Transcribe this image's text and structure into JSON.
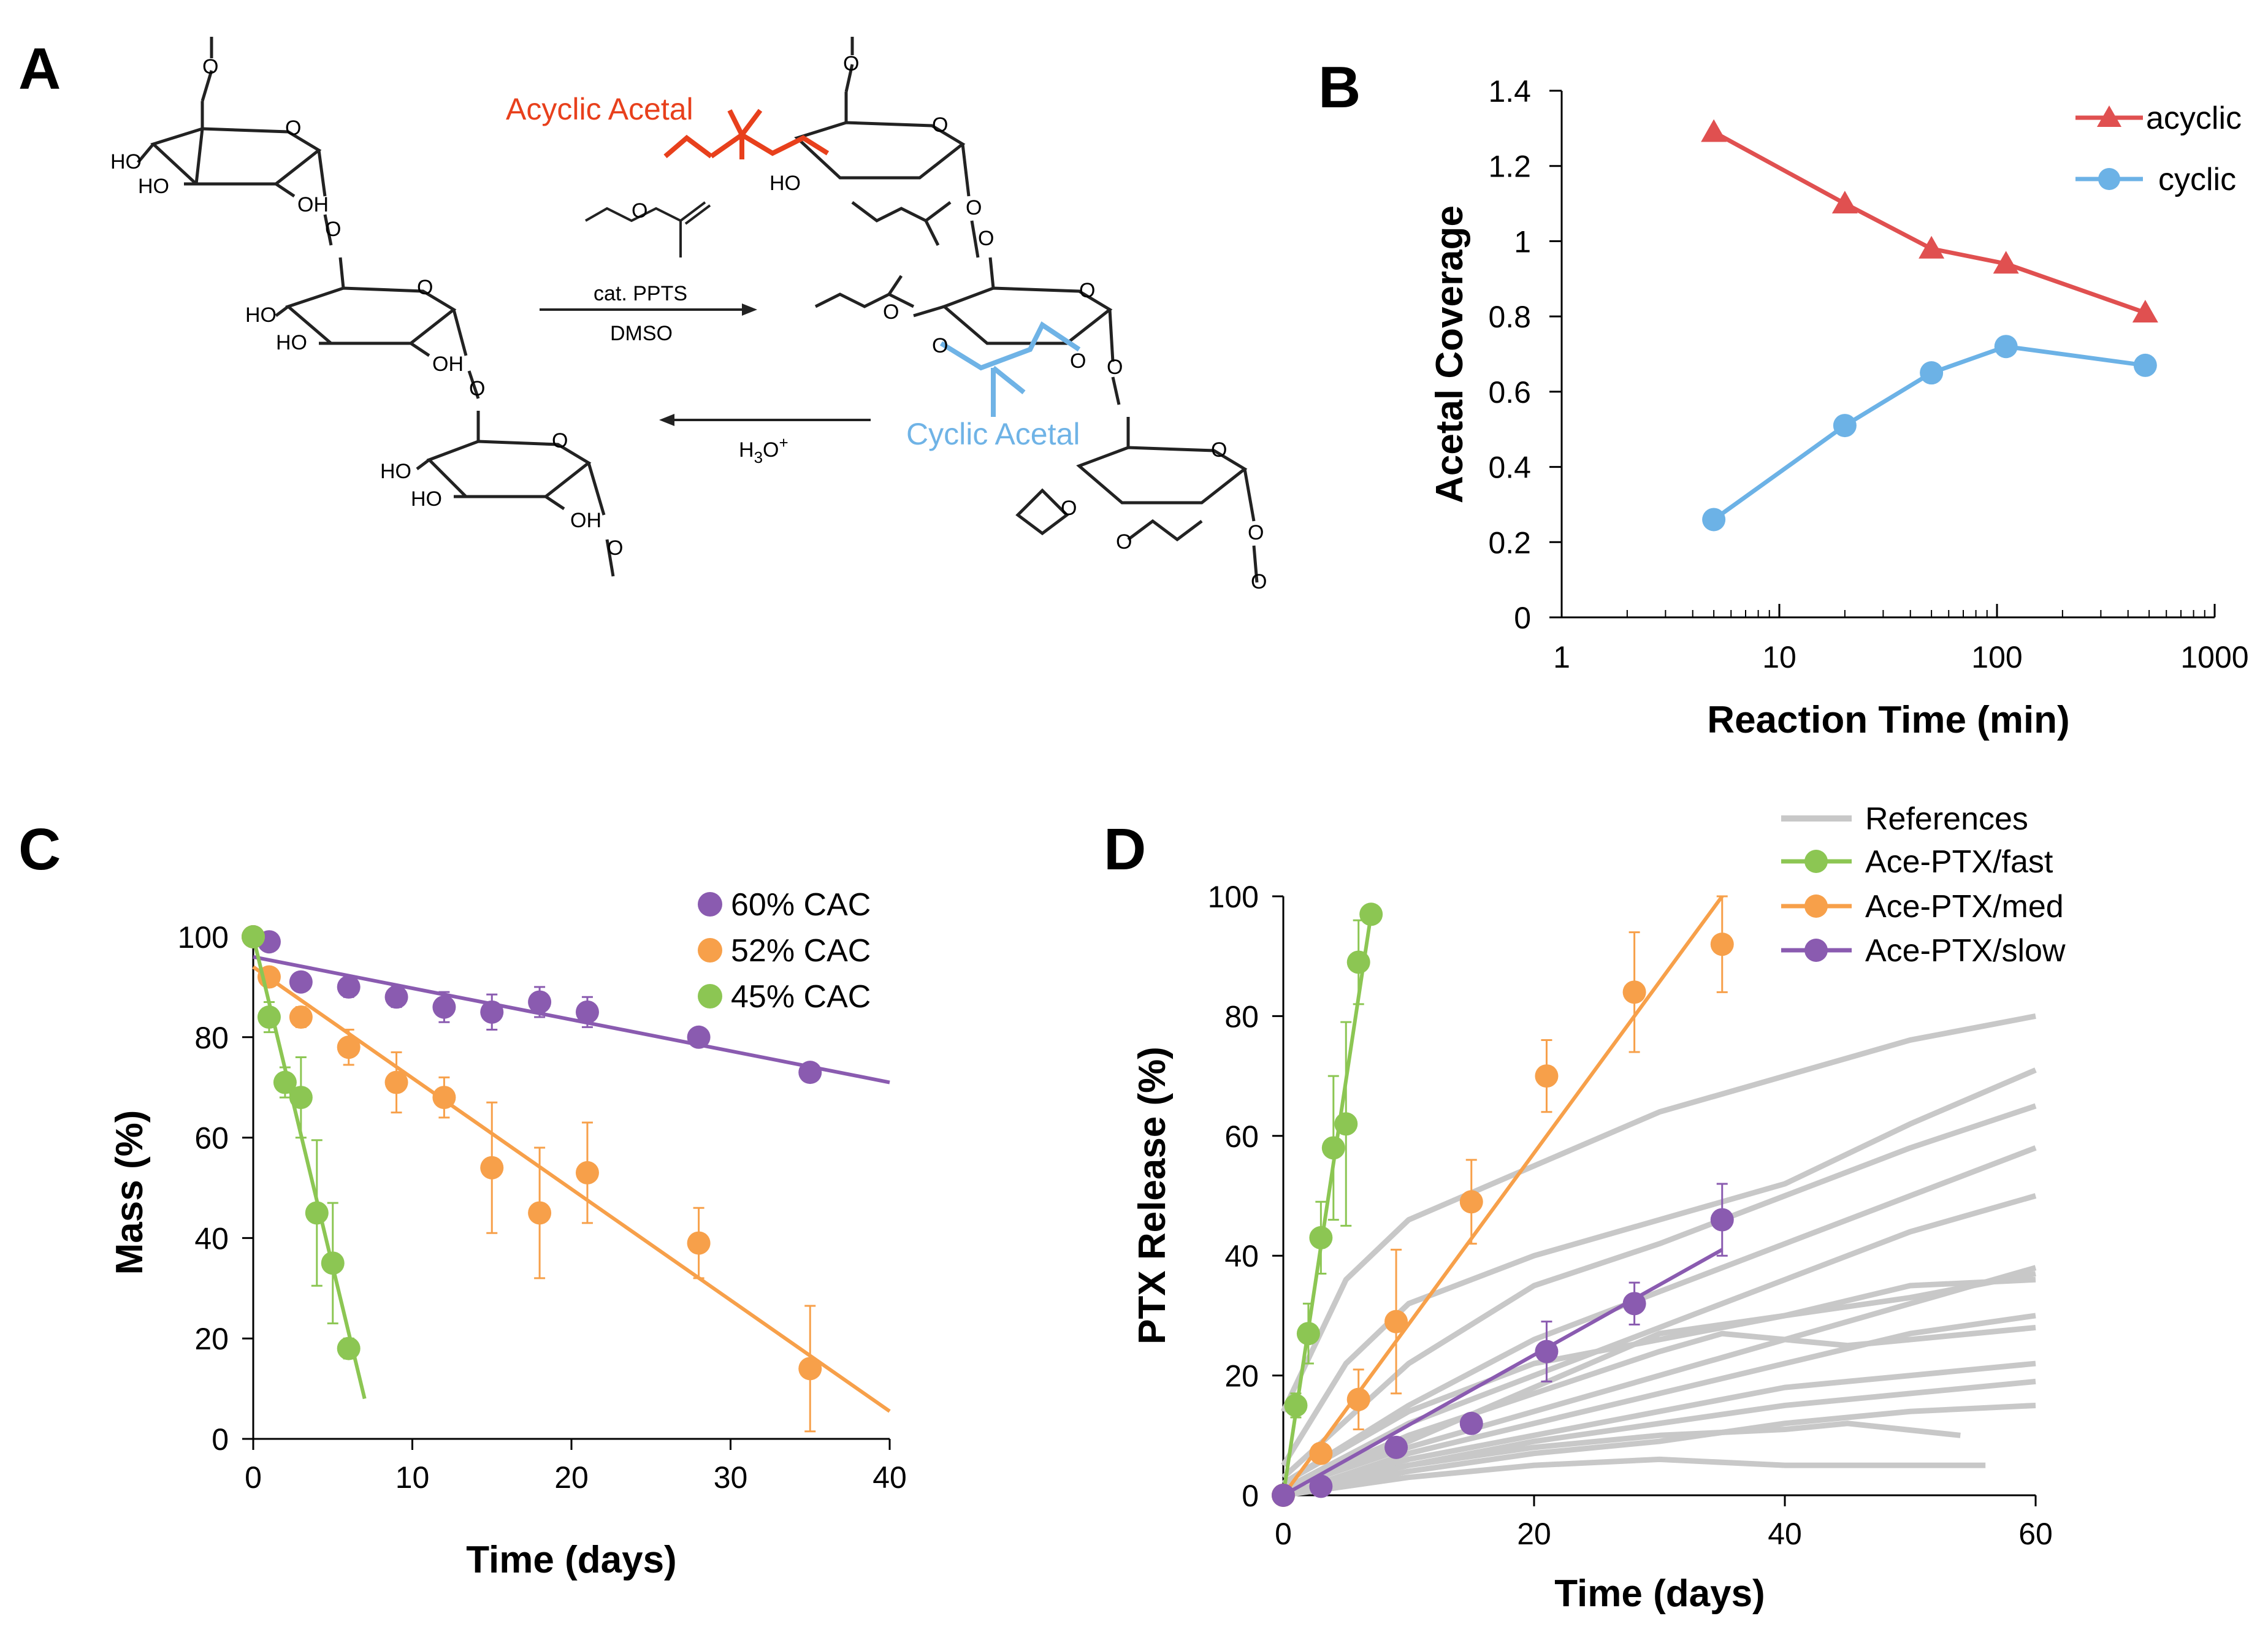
{
  "panels": {
    "a": {
      "letter": "A",
      "acyclic_label": "Acyclic Acetal",
      "cyclic_label": "Cyclic Acetal",
      "reagent_line1": "cat. PPTS",
      "reagent_line2": "DMSO",
      "reverse_label": "H3O+",
      "acyclic_color": "#e8401c",
      "cyclic_color": "#6fb3e6"
    },
    "b": {
      "letter": "B"
    },
    "c": {
      "letter": "C"
    },
    "d": {
      "letter": "D"
    }
  },
  "chart_data": [
    {
      "id": "b",
      "type": "line",
      "xscale": "log",
      "xlabel": "Reaction Time (min)",
      "ylabel": "Acetal Coverage",
      "xlim": [
        1,
        1000
      ],
      "ylim": [
        0,
        1.4
      ],
      "xticks": [
        1,
        10,
        100,
        1000
      ],
      "xtick_labels": [
        "1",
        "10",
        "100",
        "1000"
      ],
      "yticks": [
        0,
        0.2,
        0.4,
        0.6,
        0.8,
        1,
        1.2,
        1.4
      ],
      "ytick_labels": [
        "0",
        "0.2",
        "0.4",
        "0.6",
        "0.8",
        "1",
        "1.2",
        "1.4"
      ],
      "legend_position": "top-right",
      "series": [
        {
          "name": "acyclic",
          "color": "#e05050",
          "marker": "triangle",
          "x": [
            5,
            20,
            50,
            110,
            480
          ],
          "y": [
            1.29,
            1.1,
            0.98,
            0.94,
            0.81
          ]
        },
        {
          "name": "cyclic",
          "color": "#6cb2e6",
          "marker": "circle",
          "x": [
            5,
            20,
            50,
            110,
            480
          ],
          "y": [
            0.26,
            0.51,
            0.65,
            0.72,
            0.67
          ]
        }
      ]
    },
    {
      "id": "c",
      "type": "scatter",
      "xlabel": "Time (days)",
      "ylabel": "Mass (%)",
      "xlim": [
        0,
        40
      ],
      "ylim": [
        0,
        100
      ],
      "xticks": [
        0,
        10,
        20,
        30,
        40
      ],
      "xtick_labels": [
        "0",
        "10",
        "20",
        "30",
        "40"
      ],
      "yticks": [
        0,
        20,
        40,
        60,
        80,
        100
      ],
      "ytick_labels": [
        "0",
        "20",
        "40",
        "60",
        "80",
        "100"
      ],
      "legend_position": "top-right",
      "series": [
        {
          "name": "60% CAC",
          "color": "#8a5bb0",
          "x": [
            0,
            1,
            3,
            6,
            9,
            12,
            15,
            18,
            21,
            28,
            35
          ],
          "y": [
            100,
            99,
            91,
            90,
            88,
            86,
            85,
            87,
            85,
            80,
            73
          ],
          "err": [
            0,
            0,
            1.5,
            2,
            2,
            3,
            3.5,
            3,
            3,
            1,
            1
          ],
          "fit": [
            [
              0,
              96
            ],
            [
              40,
              71
            ]
          ]
        },
        {
          "name": "52% CAC",
          "color": "#f7a04a",
          "x": [
            0,
            1,
            3,
            6,
            9,
            12,
            15,
            18,
            21,
            28,
            35
          ],
          "y": [
            100,
            92,
            84,
            78,
            71,
            68,
            54,
            45,
            53,
            39,
            14
          ],
          "err": [
            0,
            0,
            2,
            3.5,
            6,
            4,
            13,
            13,
            10,
            7,
            12.5
          ],
          "fit": [
            [
              0,
              94
            ],
            [
              40,
              5.5
            ]
          ]
        },
        {
          "name": "45% CAC",
          "color": "#8cc653",
          "x": [
            0,
            1,
            2,
            3,
            4,
            5,
            6
          ],
          "y": [
            100,
            84,
            71,
            68,
            45,
            35,
            18
          ],
          "err": [
            0,
            3,
            3,
            8,
            14.5,
            12,
            2
          ],
          "fit": [
            [
              0,
              100
            ],
            [
              7,
              8
            ]
          ]
        }
      ]
    },
    {
      "id": "d",
      "type": "line",
      "xlabel": "Time (days)",
      "ylabel": "PTX Release (%)",
      "xlim": [
        0,
        60
      ],
      "ylim": [
        0,
        100
      ],
      "xticks": [
        0,
        20,
        40,
        60
      ],
      "xtick_labels": [
        "0",
        "20",
        "40",
        "60"
      ],
      "yticks": [
        0,
        20,
        40,
        60,
        80,
        100
      ],
      "ytick_labels": [
        "0",
        "20",
        "40",
        "60",
        "80",
        "100"
      ],
      "legend_position": "top-right",
      "references": {
        "name": "References",
        "color": "#c8c8c8",
        "curves": [
          [
            [
              0,
              14
            ],
            [
              5,
              36
            ],
            [
              10,
              46
            ],
            [
              20,
              55
            ],
            [
              30,
              64
            ],
            [
              40,
              70
            ],
            [
              50,
              76
            ],
            [
              60,
              80
            ]
          ],
          [
            [
              0,
              5
            ],
            [
              5,
              22
            ],
            [
              10,
              32
            ],
            [
              20,
              40
            ],
            [
              30,
              46
            ],
            [
              40,
              52
            ],
            [
              50,
              62
            ],
            [
              60,
              71
            ]
          ],
          [
            [
              0,
              3
            ],
            [
              10,
              22
            ],
            [
              20,
              35
            ],
            [
              30,
              42
            ],
            [
              40,
              50
            ],
            [
              50,
              58
            ],
            [
              60,
              65
            ]
          ],
          [
            [
              0,
              2
            ],
            [
              10,
              15
            ],
            [
              20,
              26
            ],
            [
              30,
              34
            ],
            [
              40,
              42
            ],
            [
              50,
              50
            ],
            [
              60,
              58
            ]
          ],
          [
            [
              0,
              1
            ],
            [
              10,
              12
            ],
            [
              20,
              20
            ],
            [
              30,
              28
            ],
            [
              40,
              36
            ],
            [
              50,
              44
            ],
            [
              60,
              50
            ]
          ],
          [
            [
              0,
              1
            ],
            [
              10,
              8
            ],
            [
              20,
              14
            ],
            [
              30,
              20
            ],
            [
              40,
              26
            ],
            [
              50,
              32
            ],
            [
              60,
              38
            ]
          ],
          [
            [
              0,
              1
            ],
            [
              10,
              9
            ],
            [
              20,
              18
            ],
            [
              30,
              27
            ],
            [
              40,
              30
            ],
            [
              50,
              33
            ],
            [
              60,
              37
            ]
          ],
          [
            [
              0,
              0
            ],
            [
              10,
              7
            ],
            [
              20,
              12
            ],
            [
              30,
              17
            ],
            [
              40,
              22
            ],
            [
              50,
              27
            ],
            [
              60,
              30
            ]
          ],
          [
            [
              0,
              0
            ],
            [
              10,
              6
            ],
            [
              20,
              10
            ],
            [
              30,
              14
            ],
            [
              40,
              18
            ],
            [
              50,
              20
            ],
            [
              60,
              22
            ]
          ],
          [
            [
              0,
              0
            ],
            [
              10,
              5
            ],
            [
              20,
              9
            ],
            [
              30,
              12
            ],
            [
              40,
              15
            ],
            [
              50,
              17
            ],
            [
              60,
              19
            ]
          ],
          [
            [
              0,
              0
            ],
            [
              10,
              4
            ],
            [
              20,
              7
            ],
            [
              30,
              9
            ],
            [
              40,
              12
            ],
            [
              50,
              14
            ],
            [
              60,
              15
            ]
          ],
          [
            [
              0,
              0
            ],
            [
              10,
              5
            ],
            [
              20,
              8
            ],
            [
              30,
              10
            ],
            [
              40,
              11
            ],
            [
              45,
              12
            ],
            [
              54,
              10
            ]
          ],
          [
            [
              0,
              0
            ],
            [
              10,
              3
            ],
            [
              20,
              5
            ],
            [
              30,
              6
            ],
            [
              40,
              5
            ],
            [
              56,
              5
            ]
          ],
          [
            [
              0,
              2
            ],
            [
              10,
              14
            ],
            [
              20,
              22
            ],
            [
              30,
              26
            ],
            [
              40,
              30
            ],
            [
              50,
              35
            ],
            [
              60,
              36
            ]
          ],
          [
            [
              0,
              1
            ],
            [
              10,
              10
            ],
            [
              20,
              17
            ],
            [
              30,
              24
            ],
            [
              35,
              27
            ],
            [
              45,
              25
            ],
            [
              60,
              28
            ]
          ]
        ]
      },
      "series": [
        {
          "name": "Ace-PTX/fast",
          "color": "#8cc653",
          "x": [
            0,
            1,
            2,
            3,
            4,
            5,
            6,
            7
          ],
          "y": [
            0,
            15,
            27,
            43,
            58,
            62,
            89,
            97
          ],
          "err": [
            0,
            2,
            5,
            6,
            12,
            17,
            7,
            1
          ],
          "fit": [
            [
              0,
              0
            ],
            [
              7,
              97
            ]
          ]
        },
        {
          "name": "Ace-PTX/med",
          "color": "#f7a04a",
          "x": [
            0,
            3,
            6,
            9,
            15,
            21,
            28,
            35
          ],
          "y": [
            0,
            7,
            16,
            29,
            49,
            70,
            84,
            92
          ],
          "err": [
            0,
            1,
            5,
            12,
            7,
            6,
            10,
            8
          ],
          "fit": [
            [
              0,
              0
            ],
            [
              35,
              100
            ]
          ]
        },
        {
          "name": "Ace-PTX/slow",
          "color": "#8a5bb0",
          "x": [
            0,
            3,
            9,
            15,
            21,
            28,
            35
          ],
          "y": [
            0,
            1.5,
            8,
            12,
            24,
            32,
            46
          ],
          "err": [
            0,
            0,
            0,
            0,
            5,
            3.5,
            6
          ],
          "fit": [
            [
              0,
              0
            ],
            [
              35,
              41
            ]
          ]
        }
      ]
    }
  ]
}
